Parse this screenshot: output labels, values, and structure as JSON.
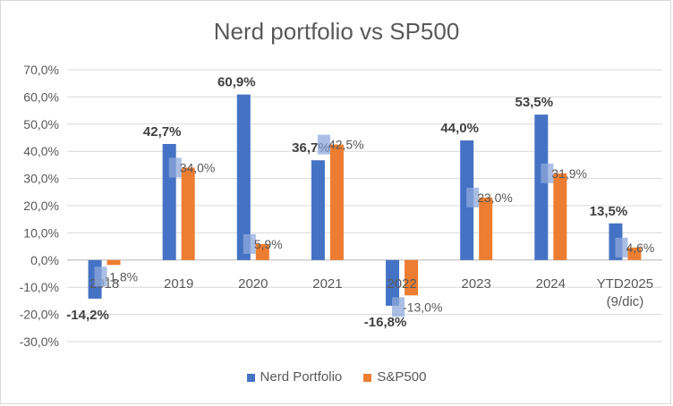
{
  "chart_data": {
    "type": "bar",
    "title": "Nerd portfolio vs SP500",
    "categories": [
      "2018",
      "2019",
      "2020",
      "2021",
      "2022",
      "2023",
      "2024",
      "YTD2025\n(9/dic)"
    ],
    "series": [
      {
        "name": "Nerd Portfolio",
        "color": "#4472c4",
        "values": [
          -14.2,
          42.7,
          60.9,
          36.7,
          -16.8,
          44.0,
          53.5,
          13.5
        ],
        "labels": [
          "-14,2%",
          "42,7%",
          "60,9%",
          "36,7%",
          "-16,8%",
          "44,0%",
          "53,5%",
          "13,5%"
        ]
      },
      {
        "name": "S&P500",
        "color": "#ed7d31",
        "values": [
          -1.8,
          34.0,
          5.9,
          42.5,
          -13.0,
          23.0,
          31.9,
          4.6
        ],
        "labels": [
          "-1,8%",
          "34,0%",
          "5,9%",
          "42,5%",
          "-13,0%",
          "23,0%",
          "31,9%",
          "4,6%"
        ]
      }
    ],
    "yticks": [
      "-30,0%",
      "-20,0%",
      "-10,0%",
      "0,0%",
      "10,0%",
      "20,0%",
      "30,0%",
      "40,0%",
      "50,0%",
      "60,0%",
      "70,0%"
    ],
    "ylim": [
      -30,
      70
    ],
    "grid": true,
    "legend": "bottom"
  }
}
